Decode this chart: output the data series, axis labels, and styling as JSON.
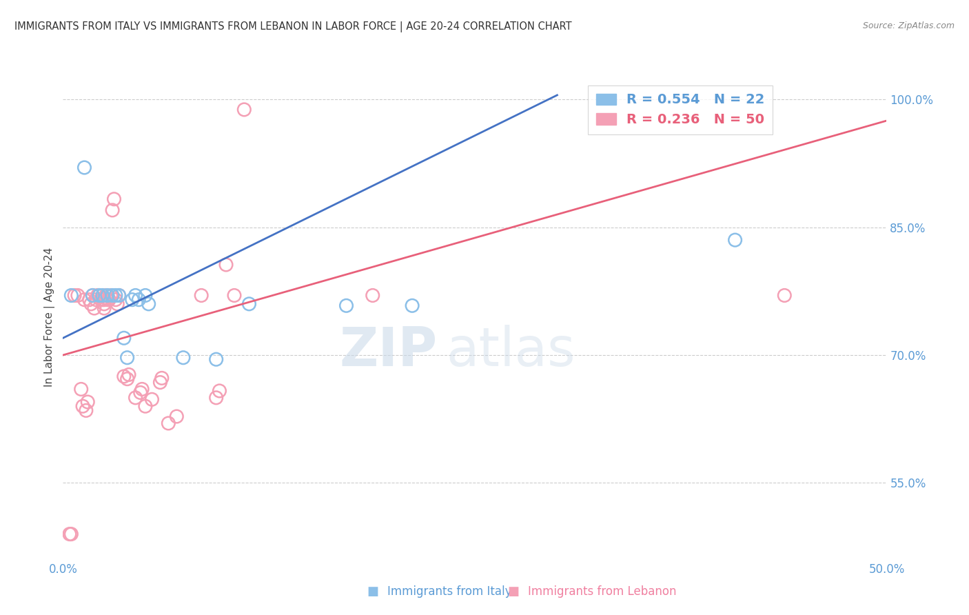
{
  "title": "IMMIGRANTS FROM ITALY VS IMMIGRANTS FROM LEBANON IN LABOR FORCE | AGE 20-24 CORRELATION CHART",
  "source": "Source: ZipAtlas.com",
  "ylabel": "In Labor Force | Age 20-24",
  "xlim": [
    0.0,
    0.5
  ],
  "ylim": [
    0.46,
    1.03
  ],
  "xtick_positions": [
    0.0,
    0.05,
    0.1,
    0.15,
    0.2,
    0.25,
    0.3,
    0.35,
    0.4,
    0.45,
    0.5
  ],
  "xticklabels": [
    "0.0%",
    "",
    "",
    "",
    "",
    "",
    "",
    "",
    "",
    "",
    "50.0%"
  ],
  "yticks_right": [
    0.55,
    0.7,
    0.85,
    1.0
  ],
  "yticklabels_right": [
    "55.0%",
    "70.0%",
    "85.0%",
    "100.0%"
  ],
  "italy_color": "#8bbfe8",
  "lebanon_color": "#f4a0b5",
  "italy_R": "0.554",
  "italy_N": "22",
  "lebanon_R": "0.236",
  "lebanon_N": "50",
  "italy_scatter_x": [
    0.005,
    0.013,
    0.018,
    0.022,
    0.024,
    0.027,
    0.03,
    0.032,
    0.034,
    0.037,
    0.039,
    0.042,
    0.044,
    0.046,
    0.05,
    0.052,
    0.073,
    0.093,
    0.113,
    0.172,
    0.212,
    0.408
  ],
  "italy_scatter_y": [
    0.77,
    0.92,
    0.77,
    0.77,
    0.77,
    0.77,
    0.77,
    0.77,
    0.77,
    0.72,
    0.697,
    0.765,
    0.77,
    0.765,
    0.77,
    0.76,
    0.697,
    0.695,
    0.76,
    0.758,
    0.758,
    0.835
  ],
  "lebanon_scatter_x": [
    0.004,
    0.005,
    0.007,
    0.009,
    0.011,
    0.012,
    0.013,
    0.014,
    0.015,
    0.016,
    0.017,
    0.018,
    0.019,
    0.02,
    0.021,
    0.022,
    0.023,
    0.024,
    0.025,
    0.025,
    0.025,
    0.026,
    0.027,
    0.028,
    0.029,
    0.03,
    0.031,
    0.032,
    0.033,
    0.034,
    0.037,
    0.039,
    0.04,
    0.044,
    0.047,
    0.048,
    0.05,
    0.054,
    0.059,
    0.06,
    0.064,
    0.069,
    0.084,
    0.093,
    0.095,
    0.099,
    0.104,
    0.11,
    0.188,
    0.438
  ],
  "lebanon_scatter_y": [
    0.49,
    0.49,
    0.77,
    0.77,
    0.66,
    0.64,
    0.765,
    0.635,
    0.645,
    0.765,
    0.76,
    0.77,
    0.755,
    0.765,
    0.77,
    0.77,
    0.765,
    0.765,
    0.765,
    0.76,
    0.755,
    0.77,
    0.765,
    0.765,
    0.77,
    0.87,
    0.883,
    0.765,
    0.76,
    0.77,
    0.675,
    0.672,
    0.677,
    0.65,
    0.656,
    0.66,
    0.64,
    0.648,
    0.668,
    0.673,
    0.62,
    0.628,
    0.77,
    0.65,
    0.658,
    0.806,
    0.77,
    0.988,
    0.77,
    0.77
  ],
  "italy_trendline_x": [
    0.0,
    0.3
  ],
  "italy_trendline_y": [
    0.72,
    1.005
  ],
  "lebanon_trendline_x": [
    0.0,
    0.5
  ],
  "lebanon_trendline_y": [
    0.7,
    0.975
  ],
  "italy_line_color": "#4472c4",
  "lebanon_line_color": "#e8607a",
  "background_color": "#ffffff",
  "grid_color": "#cccccc",
  "title_color": "#333333",
  "axis_tick_color": "#5b9bd5",
  "legend_italy_color": "#5b9bd5",
  "legend_lebanon_color": "#e8607a"
}
